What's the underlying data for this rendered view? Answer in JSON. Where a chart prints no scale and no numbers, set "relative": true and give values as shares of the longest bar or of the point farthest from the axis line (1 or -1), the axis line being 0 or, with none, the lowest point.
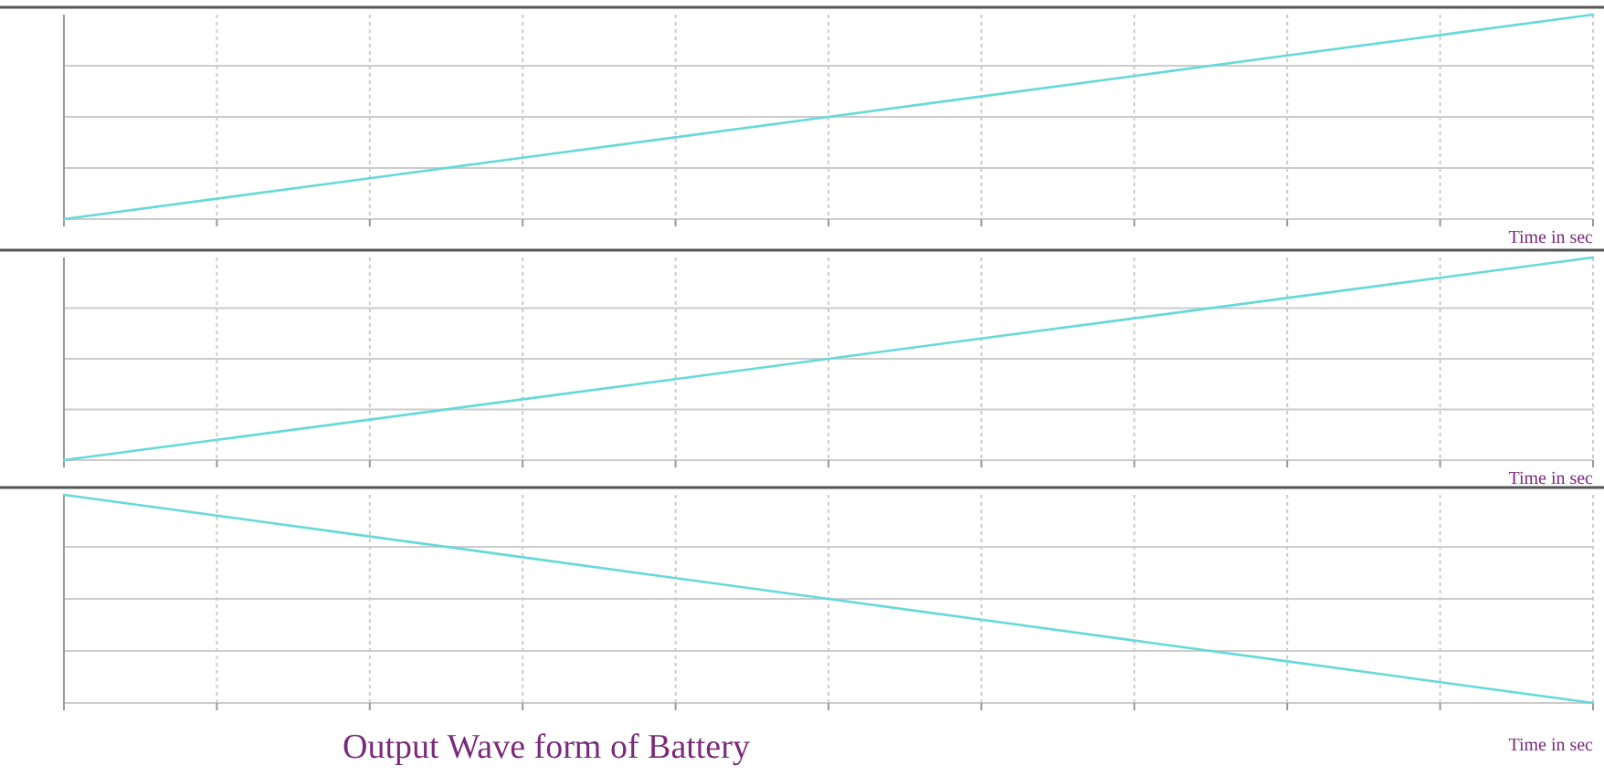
{
  "chart_data": [
    {
      "type": "line",
      "relative": true,
      "xlabel": "Time in sec",
      "categories": [
        null,
        null,
        null,
        null,
        null,
        null,
        null,
        null,
        null,
        null,
        null
      ],
      "series": [
        {
          "color": "#66d9d9",
          "values": [
            0,
            0.1,
            0.2,
            0.3,
            0.4,
            0.5,
            0.6,
            0.7,
            0.8,
            0.9,
            1
          ]
        }
      ],
      "grid": true
    },
    {
      "type": "line",
      "relative": true,
      "xlabel": "Time in sec",
      "categories": [
        null,
        null,
        null,
        null,
        null,
        null,
        null,
        null,
        null,
        null,
        null
      ],
      "series": [
        {
          "color": "#66d9d9",
          "values": [
            0,
            0.1,
            0.2,
            0.3,
            0.4,
            0.5,
            0.6,
            0.7,
            0.8,
            0.9,
            1
          ]
        }
      ],
      "grid": true
    },
    {
      "type": "line",
      "relative": true,
      "title": "Output Wave form of Battery",
      "xlabel": "Time in sec",
      "categories": [
        null,
        null,
        null,
        null,
        null,
        null,
        null,
        null,
        null,
        null,
        null
      ],
      "series": [
        {
          "color": "#66d9d9",
          "values": [
            1,
            0.9,
            0.8,
            0.7,
            0.6,
            0.5,
            0.4,
            0.3,
            0.2,
            0.1,
            0
          ]
        }
      ],
      "grid": true
    }
  ]
}
